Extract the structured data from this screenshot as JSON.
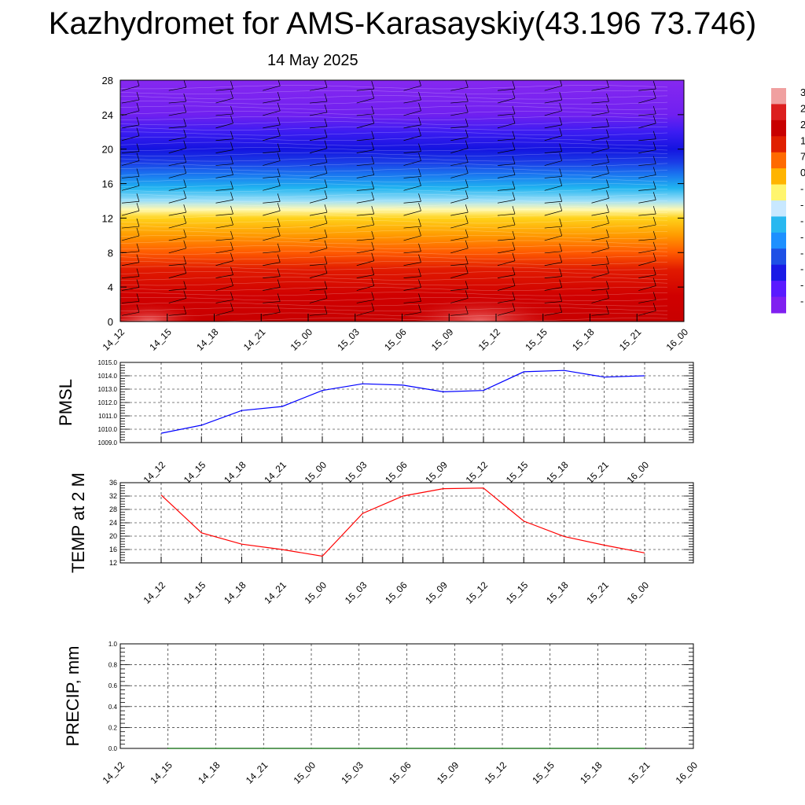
{
  "title": "Kazhydromet for AMS-Karasayskiy(43.196 73.746)",
  "subtitle": "14 May 2025",
  "chart_data": [
    {
      "type": "heatmap",
      "xticks": [
        "14_12",
        "14_15",
        "14_18",
        "14_21",
        "15_00",
        "15_03",
        "15_06",
        "15_09",
        "15_12",
        "15_15",
        "15_18",
        "15_21",
        "16_00"
      ],
      "yticks": [
        "0",
        "4",
        "8",
        "12",
        "16",
        "20",
        "24",
        "28"
      ],
      "ylim": [
        0,
        28
      ],
      "colorbar_labels": [
        "3",
        "2",
        "2",
        "1",
        "7",
        "0",
        "-",
        "-",
        "-",
        "-",
        "-",
        "-",
        "-",
        "-"
      ],
      "colorbar_colors": [
        "#f0a0a0",
        "#dc1f1f",
        "#c80000",
        "#e02000",
        "#ff6a00",
        "#ffb400",
        "#fff56e",
        "#c8e8ff",
        "#28b8f0",
        "#1e90ff",
        "#1e50e6",
        "#1a1ae6",
        "#5a1aff",
        "#8020f0"
      ],
      "color_bands": [
        {
          "height": 0,
          "color": "#c80000"
        },
        {
          "height": 3,
          "color": "#d00000"
        },
        {
          "height": 6,
          "color": "#e11a00"
        },
        {
          "height": 8,
          "color": "#ff5a00"
        },
        {
          "height": 10,
          "color": "#ff9a00"
        },
        {
          "height": 12,
          "color": "#ffd21a"
        },
        {
          "height": 13,
          "color": "#fff9b0"
        },
        {
          "height": 14,
          "color": "#9fe0f8"
        },
        {
          "height": 15.5,
          "color": "#20b4f0"
        },
        {
          "height": 17,
          "color": "#1a78f0"
        },
        {
          "height": 18.5,
          "color": "#1a3ce6"
        },
        {
          "height": 20,
          "color": "#1414e0"
        },
        {
          "height": 22,
          "color": "#3c1cf2"
        },
        {
          "height": 24,
          "color": "#7020f0"
        },
        {
          "height": 28,
          "color": "#8628f0"
        }
      ]
    },
    {
      "type": "line",
      "ylabel": "PMSL",
      "x": [
        "14_12",
        "14_15",
        "14_18",
        "14_21",
        "15_00",
        "15_03",
        "15_06",
        "15_09",
        "15_12",
        "15_15",
        "15_18",
        "15_21",
        "16_00"
      ],
      "ylim": [
        1009.0,
        1015.0
      ],
      "yticks": [
        "1009.0",
        "1010.0",
        "1011.0",
        "1012.0",
        "1013.0",
        "1014.0",
        "1015.0"
      ],
      "series": [
        {
          "values": [
            1009.7,
            1010.3,
            1011.4,
            1011.7,
            1012.9,
            1013.4,
            1013.3,
            1012.8,
            1012.9,
            1014.3,
            1014.4,
            1013.9,
            1014.0
          ],
          "color": "#0000ff"
        }
      ]
    },
    {
      "type": "line",
      "ylabel": "TEMP at 2 M",
      "x": [
        "14_12",
        "14_15",
        "14_18",
        "14_21",
        "15_00",
        "15_03",
        "15_06",
        "15_09",
        "15_12",
        "15_15",
        "15_18",
        "15_21",
        "16_00"
      ],
      "ylim": [
        12,
        36
      ],
      "yticks": [
        "12",
        "16",
        "20",
        "24",
        "28",
        "32",
        "36"
      ],
      "series": [
        {
          "values": [
            32.3,
            21.0,
            17.6,
            16.0,
            14.0,
            26.8,
            32.0,
            34.2,
            34.4,
            24.5,
            19.9,
            17.3,
            15.0
          ],
          "color": "#ff0000"
        }
      ]
    },
    {
      "type": "line",
      "ylabel": "PRECIP, mm",
      "x": [
        "14_12",
        "14_15",
        "14_18",
        "14_21",
        "15_00",
        "15_03",
        "15_06",
        "15_09",
        "15_12",
        "15_15",
        "15_18",
        "15_21",
        "16_00"
      ],
      "ylim": [
        0.0,
        1.0
      ],
      "yticks": [
        "0.0",
        "0.2",
        "0.4",
        "0.6",
        "0.8",
        "1.0"
      ],
      "series": [
        {
          "values": [
            0,
            0,
            0,
            0,
            0,
            0,
            0,
            0,
            0,
            0,
            0,
            0,
            0
          ],
          "color": "#006400"
        }
      ]
    }
  ]
}
